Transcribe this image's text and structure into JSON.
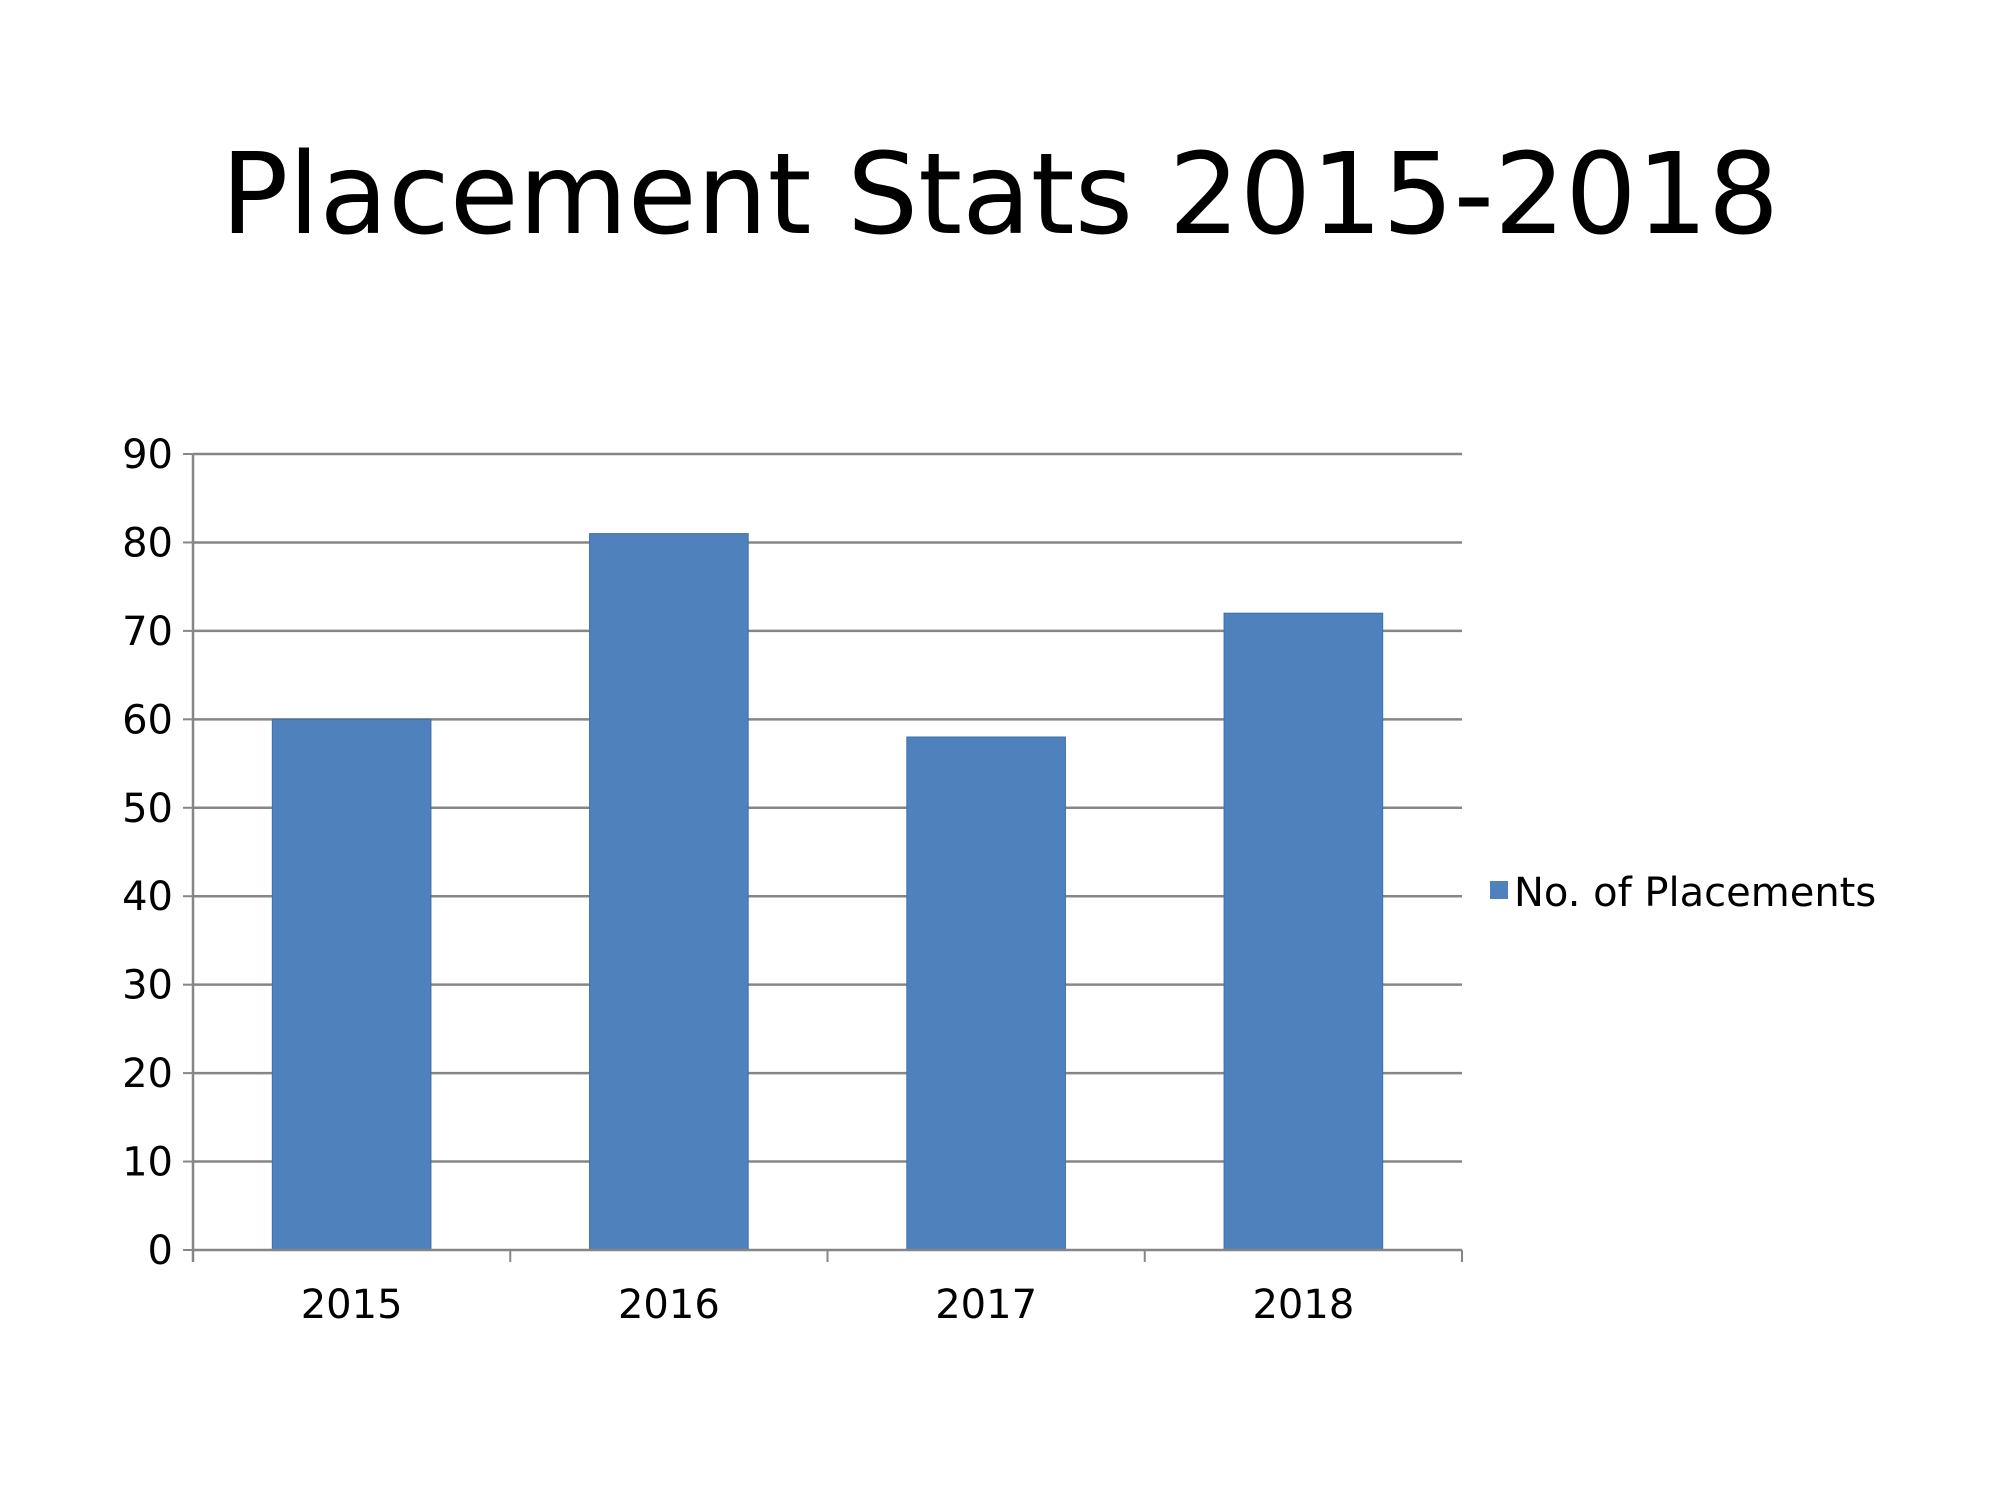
{
  "slide": {
    "title": "Placement Stats 2015-2018"
  },
  "chart_data": {
    "type": "bar",
    "categories": [
      "2015",
      "2016",
      "2017",
      "2018"
    ],
    "series": [
      {
        "name": "No. of Placements",
        "values": [
          60,
          81,
          58,
          72
        ]
      }
    ],
    "y_ticks": [
      "0",
      "10",
      "20",
      "30",
      "40",
      "50",
      "60",
      "70",
      "80",
      "90"
    ],
    "ylim": [
      0,
      90
    ],
    "grid": true,
    "legend": "right",
    "colors": {
      "bar": "#4F81BD",
      "grid": "#868686",
      "axis": "#868686"
    }
  }
}
